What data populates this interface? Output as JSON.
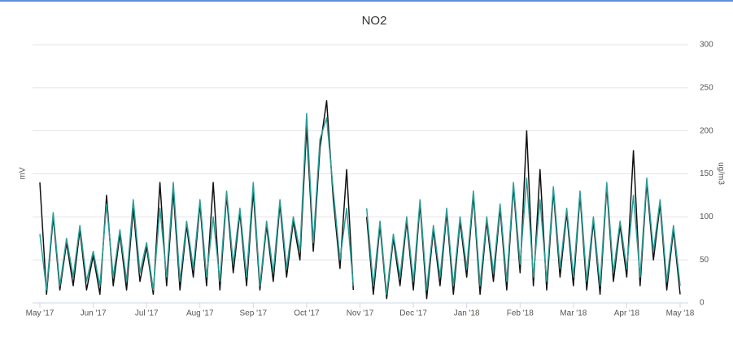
{
  "chart_data": {
    "type": "line",
    "title": "NO2",
    "y_label": "mV",
    "y2_label": "ug/m3",
    "categories": [
      "May '17",
      null,
      null,
      null,
      null,
      null,
      null,
      null,
      "Jun '17",
      null,
      null,
      null,
      null,
      null,
      null,
      null,
      "Jul '17",
      null,
      null,
      null,
      null,
      null,
      null,
      null,
      "Aug '17",
      null,
      null,
      null,
      null,
      null,
      null,
      null,
      "Sep '17",
      null,
      null,
      null,
      null,
      null,
      null,
      null,
      "Oct '17",
      null,
      null,
      null,
      null,
      null,
      null,
      null,
      "Nov '17",
      null,
      null,
      null,
      null,
      null,
      null,
      null,
      "Dec '17",
      null,
      null,
      null,
      null,
      null,
      null,
      null,
      "Jan '18",
      null,
      null,
      null,
      null,
      null,
      null,
      null,
      "Feb '18",
      null,
      null,
      null,
      null,
      null,
      null,
      null,
      "Mar '18",
      null,
      null,
      null,
      null,
      null,
      null,
      null,
      "Apr '18",
      null,
      null,
      null,
      null,
      null,
      null,
      null,
      "May '18"
    ],
    "series": [
      {
        "color": "#111111",
        "axis": "y2",
        "values": [
          140,
          10,
          100,
          15,
          70,
          20,
          85,
          15,
          55,
          10,
          125,
          20,
          80,
          15,
          110,
          25,
          65,
          10,
          140,
          20,
          130,
          15,
          90,
          30,
          115,
          20,
          140,
          15,
          125,
          35,
          105,
          20,
          130,
          15,
          90,
          25,
          115,
          30,
          95,
          50,
          205,
          60,
          180,
          235,
          120,
          40,
          155,
          15,
          null,
          100,
          10,
          90,
          5,
          75,
          20,
          95,
          15,
          115,
          5,
          85,
          20,
          105,
          10,
          95,
          30,
          125,
          10,
          95,
          25,
          110,
          15,
          135,
          35,
          200,
          20,
          155,
          15,
          130,
          30,
          105,
          20,
          125,
          15,
          95,
          10,
          135,
          25,
          90,
          30,
          177,
          20,
          140,
          50,
          115,
          15,
          85,
          10
        ]
      },
      {
        "color": "#2a9d96",
        "axis": "y2",
        "values": [
          80,
          15,
          105,
          20,
          75,
          30,
          90,
          25,
          60,
          20,
          115,
          30,
          85,
          25,
          120,
          35,
          70,
          15,
          110,
          30,
          140,
          25,
          95,
          40,
          120,
          30,
          100,
          25,
          130,
          45,
          110,
          30,
          140,
          20,
          95,
          35,
          120,
          40,
          100,
          60,
          220,
          70,
          190,
          215,
          130,
          50,
          110,
          20,
          null,
          110,
          20,
          95,
          10,
          80,
          30,
          100,
          25,
          120,
          15,
          90,
          30,
          110,
          20,
          100,
          40,
          130,
          20,
          100,
          35,
          115,
          25,
          140,
          45,
          145,
          30,
          120,
          25,
          135,
          40,
          110,
          30,
          130,
          25,
          100,
          20,
          140,
          35,
          95,
          40,
          125,
          30,
          145,
          60,
          120,
          25,
          90,
          20
        ]
      }
    ],
    "y2lim": [
      0,
      300
    ],
    "y2ticks": [
      0,
      50,
      100,
      150,
      200,
      250,
      300
    ],
    "grid": true
  }
}
